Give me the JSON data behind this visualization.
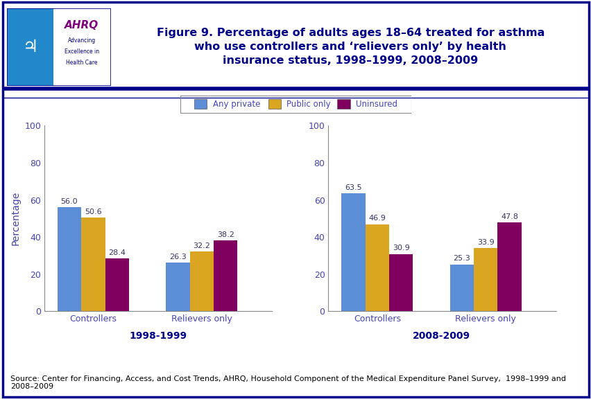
{
  "title": "Figure 9. Percentage of adults ages 18–64 treated for asthma\nwho use controllers and ‘relievers only’ by health\ninsurance status, 1998–1999, 2008–2009",
  "title_color": "#00008B",
  "title_fontsize": 11.5,
  "ylabel": "Percentage",
  "ylabel_fontsize": 10,
  "ylabel_color": "#4444AA",
  "categories": [
    "Controllers",
    "Relievers only"
  ],
  "legend_labels": [
    "Any private",
    "Public only",
    "Uninsured"
  ],
  "legend_text_color": "#4444BB",
  "bar_colors": [
    "#5B8ED6",
    "#DAA520",
    "#800060"
  ],
  "bar_width": 0.22,
  "ylim": [
    0,
    100
  ],
  "yticks": [
    0,
    20,
    40,
    60,
    80,
    100
  ],
  "period1_label": "1998-1999",
  "period2_label": "2008-2009",
  "period1_label_color": "#00008B",
  "period2_label_color": "#00008B",
  "data_1998": {
    "Controllers": [
      56.0,
      50.6,
      28.4
    ],
    "Relievers only": [
      26.3,
      32.2,
      38.2
    ]
  },
  "data_2008": {
    "Controllers": [
      63.5,
      46.9,
      30.9
    ],
    "Relievers only": [
      25.3,
      33.9,
      47.8
    ]
  },
  "source_text": "Source: Center for Financing, Access, and Cost Trends, AHRQ, Household Component of the Medical Expenditure Panel Survey,  1998–1999 and\n2008–2009",
  "source_fontsize": 8,
  "outer_border_color": "#00008B",
  "separator_line_color": "#00008B",
  "background_color": "#FFFFFF",
  "tick_label_color": "#4444BB",
  "value_label_color": "#333366",
  "value_label_fontsize": 8
}
